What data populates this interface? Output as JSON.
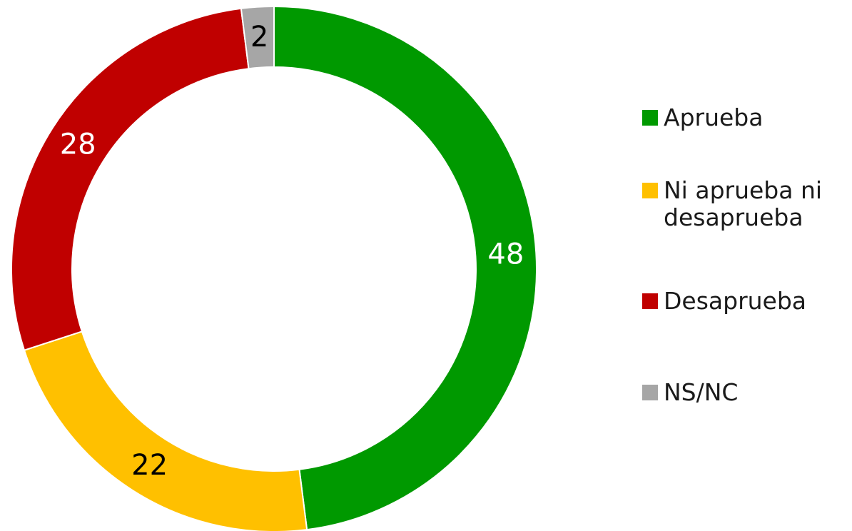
{
  "chart_data": {
    "type": "donut",
    "categories": [
      "Aprueba",
      "Ni aprueba ni desaprueba",
      "Desaprueba",
      "NS/NC"
    ],
    "values": [
      48,
      22,
      28,
      2
    ],
    "colors": [
      "#009900",
      "#ffc000",
      "#c00000",
      "#a6a6a6"
    ],
    "label_colors": [
      "#ffffff",
      "#000000",
      "#ffffff",
      "#000000"
    ],
    "legend": "right"
  }
}
